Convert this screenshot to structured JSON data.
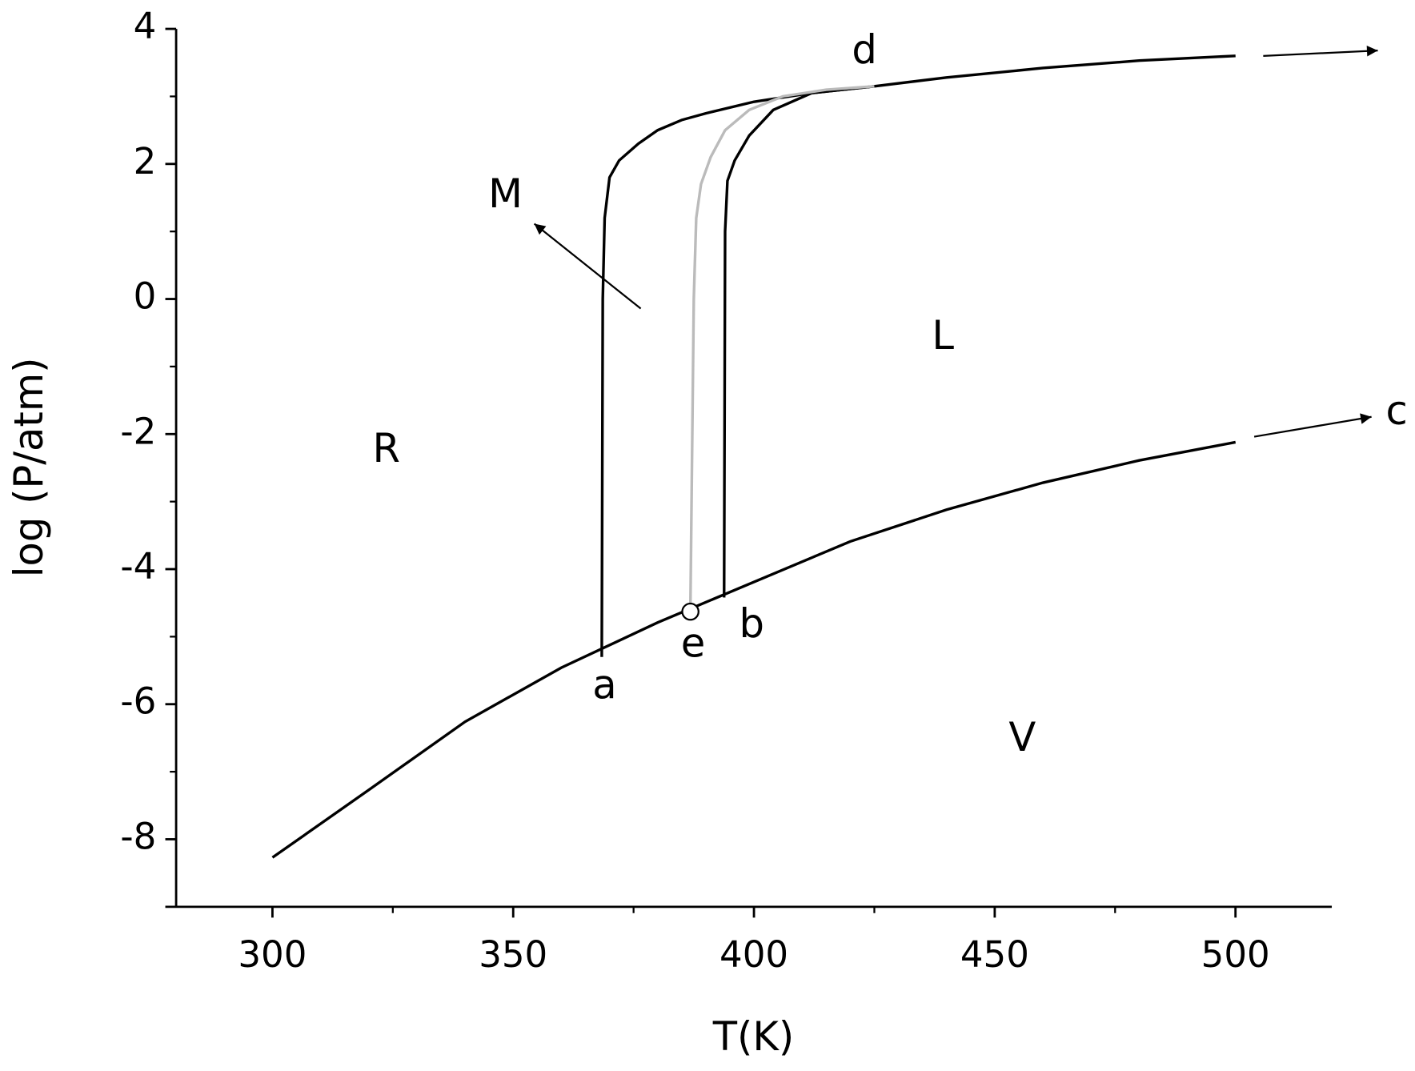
{
  "chart_data": {
    "type": "line",
    "xlabel": "T(K)",
    "ylabel": "log (P/atm)",
    "xlim": [
      280,
      520
    ],
    "ylim": [
      -9,
      4
    ],
    "xticks": [
      300,
      350,
      400,
      450,
      500
    ],
    "x_minor_ticks": [
      325,
      375,
      425,
      475
    ],
    "yticks": [
      -8,
      -6,
      -4,
      -2,
      0,
      2,
      4
    ],
    "y_minor_ticks": [
      -9,
      -7,
      -5,
      -3,
      -1,
      1,
      3
    ],
    "series": [
      {
        "color": "#000000",
        "x": [
          300,
          320,
          340,
          360,
          380,
          400,
          420,
          440,
          460,
          480,
          500
        ],
        "values": [
          -8.27,
          -7.27,
          -6.26,
          -5.46,
          -4.79,
          -4.19,
          -3.59,
          -3.12,
          -2.72,
          -2.39,
          -2.12
        ]
      },
      {
        "color": "#000000",
        "x": [
          368.4,
          368.6,
          369,
          370,
          372,
          376,
          380,
          385,
          390,
          400,
          412,
          425,
          440,
          460,
          480,
          500
        ],
        "values": [
          -5.3,
          0,
          1.2,
          1.8,
          2.05,
          2.3,
          2.5,
          2.65,
          2.75,
          2.92,
          3.05,
          3.15,
          3.28,
          3.42,
          3.53,
          3.6
        ]
      },
      {
        "color": "#000000",
        "x": [
          393.8,
          394,
          394.5,
          396,
          399,
          404,
          412,
          425
        ],
        "values": [
          -4.42,
          1.0,
          1.75,
          2.05,
          2.42,
          2.8,
          3.05,
          3.15
        ]
      },
      {
        "color": "#bbbbbb",
        "x": [
          386.8,
          387.5,
          388,
          389,
          391,
          394,
          399,
          406,
          415,
          425
        ],
        "values": [
          -4.63,
          0,
          1.2,
          1.7,
          2.1,
          2.5,
          2.8,
          3.0,
          3.1,
          3.15
        ]
      }
    ],
    "point": {
      "x": 386.8,
      "y": -4.63
    },
    "annotations": [
      "R",
      "M",
      "L",
      "V",
      "a",
      "e",
      "b",
      "c",
      "d"
    ]
  }
}
